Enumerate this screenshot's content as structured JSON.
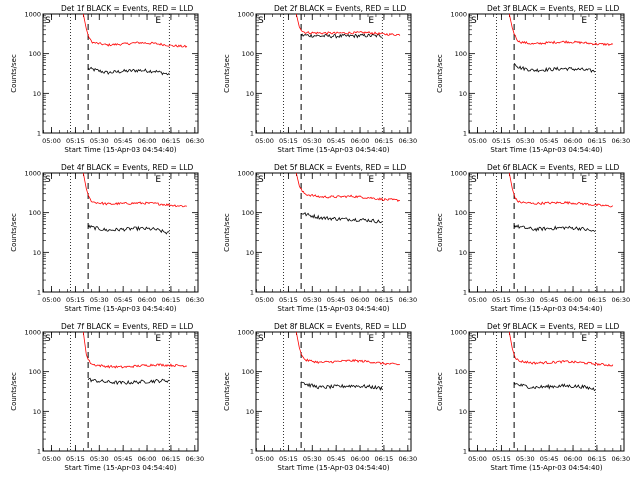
{
  "chart_data": {
    "type": "line",
    "xlabel": "Start Time (15-Apr-03 04:54:40)",
    "ylabel": "Counts/sec",
    "x_tick_labels": [
      "05:00",
      "05:15",
      "05:30",
      "05:45",
      "06:00",
      "06:15",
      "06:30"
    ],
    "y_tick_labels": [
      "1",
      "10",
      "100",
      "1000"
    ],
    "y_scale": "log",
    "ylim": [
      1,
      1000
    ],
    "xlim": [
      "04:54:40",
      "06:32:00"
    ],
    "grid": false,
    "line_colors": {
      "events": "#000000",
      "lld": "#ff0000"
    },
    "marker_labels": {
      "start": "S",
      "end": "E"
    },
    "panels": [
      {
        "title": "Det 1f BLACK = Events, RED = LLD",
        "vertical_markers": {
          "dotted": [
            "05:12",
            "06:14"
          ],
          "dashed": "05:23"
        },
        "segments": [
          {
            "name": "Events",
            "x": [
              "05:23",
              "05:26",
              "05:35",
              "05:45",
              "05:55",
              "06:05",
              "06:14"
            ],
            "y": [
              42,
              40,
              33,
              36,
              38,
              36,
              30
            ]
          },
          {
            "name": "LLD",
            "x": [
              "05:20",
              "05:22",
              "05:24",
              "05:26",
              "05:35",
              "05:45",
              "05:55",
              "06:05",
              "06:15",
              "06:25"
            ],
            "y": [
              1000,
              400,
              230,
              190,
              165,
              175,
              190,
              180,
              160,
              150
            ]
          }
        ]
      },
      {
        "title": "Det 2f BLACK = Events, RED = LLD",
        "vertical_markers": {
          "dotted": [
            "05:12",
            "06:14"
          ],
          "dashed": "05:23"
        },
        "segments": [
          {
            "name": "Events",
            "x": [
              "05:23",
              "05:26",
              "05:35",
              "05:45",
              "05:55",
              "06:05",
              "06:14"
            ],
            "y": [
              290,
              290,
              280,
              275,
              280,
              285,
              280
            ]
          },
          {
            "name": "LLD",
            "x": [
              "05:20",
              "05:22",
              "05:24",
              "05:26",
              "05:35",
              "05:45",
              "05:55",
              "06:05",
              "06:15",
              "06:25"
            ],
            "y": [
              1000,
              450,
              360,
              340,
              330,
              330,
              335,
              340,
              310,
              300
            ]
          }
        ]
      },
      {
        "title": "Det 3f BLACK = Events, RED = LLD",
        "vertical_markers": {
          "dotted": [
            "05:12",
            "06:14"
          ],
          "dashed": "05:23"
        },
        "segments": [
          {
            "name": "Events",
            "x": [
              "05:23",
              "05:26",
              "05:35",
              "05:45",
              "05:55",
              "06:05",
              "06:14"
            ],
            "y": [
              60,
              45,
              38,
              40,
              42,
              40,
              36
            ]
          },
          {
            "name": "LLD",
            "x": [
              "05:20",
              "05:22",
              "05:24",
              "05:26",
              "05:35",
              "05:45",
              "05:55",
              "06:05",
              "06:15",
              "06:25"
            ],
            "y": [
              1000,
              420,
              260,
              200,
              175,
              190,
              200,
              190,
              175,
              170
            ]
          }
        ]
      },
      {
        "title": "Det 4f BLACK = Events, RED = LLD",
        "vertical_markers": {
          "dotted": [
            "05:12",
            "06:14"
          ],
          "dashed": "05:23"
        },
        "segments": [
          {
            "name": "Events",
            "x": [
              "05:23",
              "05:26",
              "05:35",
              "05:45",
              "05:55",
              "06:05",
              "06:14"
            ],
            "y": [
              45,
              42,
              36,
              38,
              40,
              38,
              30
            ]
          },
          {
            "name": "LLD",
            "x": [
              "05:20",
              "05:22",
              "05:24",
              "05:26",
              "05:35",
              "05:45",
              "05:55",
              "06:05",
              "06:15",
              "06:25"
            ],
            "y": [
              1000,
              380,
              220,
              185,
              165,
              170,
              175,
              170,
              155,
              145
            ]
          }
        ]
      },
      {
        "title": "Det 5f BLACK = Events, RED = LLD",
        "vertical_markers": {
          "dotted": [
            "05:12",
            "06:14"
          ],
          "dashed": "05:23"
        },
        "segments": [
          {
            "name": "Events",
            "x": [
              "05:23",
              "05:26",
              "05:35",
              "05:45",
              "05:55",
              "06:05",
              "06:14"
            ],
            "y": [
              100,
              90,
              75,
              70,
              68,
              65,
              58
            ]
          },
          {
            "name": "LLD",
            "x": [
              "05:20",
              "05:22",
              "05:24",
              "05:26",
              "05:35",
              "05:45",
              "05:55",
              "06:05",
              "06:15",
              "06:25"
            ],
            "y": [
              1000,
              450,
              330,
              290,
              250,
              250,
              260,
              240,
              215,
              205
            ]
          }
        ]
      },
      {
        "title": "Det 6f BLACK = Events, RED = LLD",
        "vertical_markers": {
          "dotted": [
            "05:12",
            "06:14"
          ],
          "dashed": "05:23"
        },
        "segments": [
          {
            "name": "Events",
            "x": [
              "05:23",
              "05:26",
              "05:35",
              "05:45",
              "05:55",
              "06:05",
              "06:14"
            ],
            "y": [
              48,
              44,
              38,
              40,
              42,
              40,
              33
            ]
          },
          {
            "name": "LLD",
            "x": [
              "05:20",
              "05:22",
              "05:24",
              "05:26",
              "05:35",
              "05:45",
              "05:55",
              "06:05",
              "06:15",
              "06:25"
            ],
            "y": [
              1000,
              380,
              220,
              185,
              170,
              175,
              180,
              170,
              155,
              145
            ]
          }
        ]
      },
      {
        "title": "Det 7f BLACK = Events, RED = LLD",
        "vertical_markers": {
          "dotted": [
            "05:12",
            "06:14"
          ],
          "dashed": "05:23"
        },
        "segments": [
          {
            "name": "Events",
            "x": [
              "05:23",
              "05:26",
              "05:35",
              "05:45",
              "05:55",
              "06:05",
              "06:14"
            ],
            "y": [
              65,
              60,
              55,
              52,
              55,
              58,
              60
            ]
          },
          {
            "name": "LLD",
            "x": [
              "05:20",
              "05:22",
              "05:24",
              "05:26",
              "05:35",
              "05:45",
              "05:55",
              "06:05",
              "06:15",
              "06:25"
            ],
            "y": [
              1000,
              250,
              175,
              150,
              135,
              130,
              140,
              150,
              145,
              140
            ]
          }
        ]
      },
      {
        "title": "Det 8f BLACK = Events, RED = LLD",
        "vertical_markers": {
          "dotted": [
            "05:12",
            "06:14"
          ],
          "dashed": "05:23"
        },
        "segments": [
          {
            "name": "Events",
            "x": [
              "05:23",
              "05:26",
              "05:35",
              "05:45",
              "05:55",
              "06:05",
              "06:14"
            ],
            "y": [
              60,
              48,
              40,
              42,
              44,
              42,
              38
            ]
          },
          {
            "name": "LLD",
            "x": [
              "05:20",
              "05:22",
              "05:24",
              "05:26",
              "05:35",
              "05:45",
              "05:55",
              "06:05",
              "06:15",
              "06:25"
            ],
            "y": [
              1000,
              380,
              230,
              195,
              170,
              180,
              190,
              180,
              160,
              150
            ]
          }
        ]
      },
      {
        "title": "Det 9f BLACK = Events, RED = LLD",
        "vertical_markers": {
          "dotted": [
            "05:12",
            "06:14"
          ],
          "dashed": "05:23"
        },
        "segments": [
          {
            "name": "Events",
            "x": [
              "05:23",
              "05:26",
              "05:35",
              "05:45",
              "05:55",
              "06:05",
              "06:14"
            ],
            "y": [
              52,
              46,
              40,
              42,
              44,
              42,
              36
            ]
          },
          {
            "name": "LLD",
            "x": [
              "05:20",
              "05:22",
              "05:24",
              "05:26",
              "05:35",
              "05:45",
              "05:55",
              "06:05",
              "06:15",
              "06:25"
            ],
            "y": [
              1000,
              360,
              220,
              185,
              165,
              170,
              180,
              170,
              155,
              145
            ]
          }
        ]
      }
    ]
  }
}
